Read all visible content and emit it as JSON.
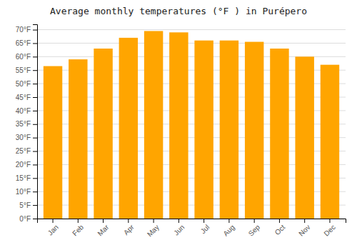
{
  "chart_data": {
    "type": "bar",
    "title": "Average monthly temperatures (°F ) in Purépero",
    "categories": [
      "Jan",
      "Feb",
      "Mar",
      "Apr",
      "May",
      "Jun",
      "Jul",
      "Aug",
      "Sep",
      "Oct",
      "Nov",
      "Dec"
    ],
    "values": [
      56.5,
      59.0,
      63.0,
      67.0,
      69.5,
      69.0,
      66.0,
      66.0,
      65.5,
      63.0,
      60.0,
      57.0
    ],
    "color": "#FFA500",
    "ylim": [
      0,
      72
    ],
    "yticks": [
      {
        "value": 0,
        "label": "0°F"
      },
      {
        "value": 5,
        "label": "5°F"
      },
      {
        "value": 10,
        "label": "10°F"
      },
      {
        "value": 15,
        "label": "15°F"
      },
      {
        "value": 20,
        "label": "20°F"
      },
      {
        "value": 25,
        "label": "25°F"
      },
      {
        "value": 30,
        "label": "30°F"
      },
      {
        "value": 35,
        "label": "35°F"
      },
      {
        "value": 40,
        "label": "40°F"
      },
      {
        "value": 45,
        "label": "45°F"
      },
      {
        "value": 50,
        "label": "50°F"
      },
      {
        "value": 55,
        "label": "55°F"
      },
      {
        "value": 60,
        "label": "60°F"
      },
      {
        "value": 65,
        "label": "65°F"
      },
      {
        "value": 70,
        "label": "70°F"
      }
    ],
    "grid": true
  }
}
